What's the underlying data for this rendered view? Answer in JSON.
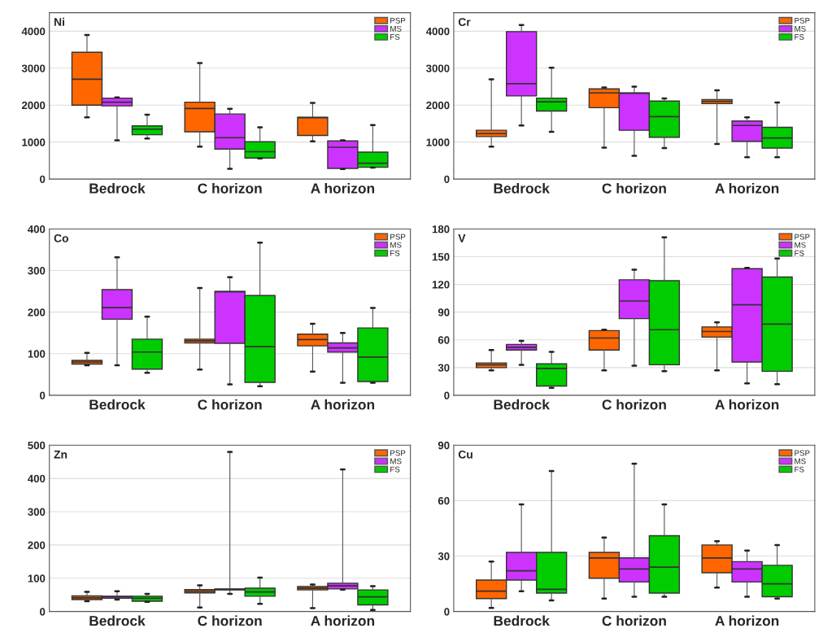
{
  "chart_data": [
    {
      "type": "box",
      "title": "Ni",
      "categories": [
        "Bedrock",
        "C horizon",
        "A horizon"
      ],
      "ylim": [
        0,
        4500
      ],
      "yticks": [
        0,
        1000,
        2000,
        3000,
        4000
      ],
      "grid": "y",
      "legend": "top right",
      "series": [
        {
          "name": "PSP",
          "color": "#ff6600",
          "boxes": [
            {
              "low": 1670,
              "q1": 2000,
              "median": 2700,
              "q3": 3430,
              "high": 3900
            },
            {
              "low": 880,
              "q1": 1280,
              "median": 1910,
              "q3": 2080,
              "high": 3140
            },
            {
              "low": 1020,
              "q1": 1180,
              "median": 1660,
              "q3": 1670,
              "high": 2060
            }
          ]
        },
        {
          "name": "MS",
          "color": "#cc33ff",
          "boxes": [
            {
              "low": 1050,
              "q1": 1980,
              "median": 2080,
              "q3": 2190,
              "high": 2210
            },
            {
              "low": 280,
              "q1": 810,
              "median": 1120,
              "q3": 1760,
              "high": 1900
            },
            {
              "low": 270,
              "q1": 290,
              "median": 860,
              "q3": 1030,
              "high": 1050
            }
          ]
        },
        {
          "name": "FS",
          "color": "#00cc00",
          "boxes": [
            {
              "low": 1100,
              "q1": 1200,
              "median": 1350,
              "q3": 1440,
              "high": 1740
            },
            {
              "low": 560,
              "q1": 570,
              "median": 740,
              "q3": 1010,
              "high": 1400
            },
            {
              "low": 310,
              "q1": 320,
              "median": 430,
              "q3": 730,
              "high": 1460
            }
          ]
        }
      ]
    },
    {
      "type": "box",
      "title": "Cr",
      "categories": [
        "Bedrock",
        "C horizon",
        "A horizon"
      ],
      "ylim": [
        0,
        4500
      ],
      "yticks": [
        0,
        1000,
        2000,
        3000,
        4000
      ],
      "grid": "y",
      "legend": "top right",
      "series": [
        {
          "name": "PSP",
          "color": "#ff6600",
          "boxes": [
            {
              "low": 880,
              "q1": 1150,
              "median": 1230,
              "q3": 1320,
              "high": 2700
            },
            {
              "low": 850,
              "q1": 1930,
              "median": 2330,
              "q3": 2440,
              "high": 2480
            },
            {
              "low": 950,
              "q1": 2040,
              "median": 2100,
              "q3": 2150,
              "high": 2400
            }
          ]
        },
        {
          "name": "MS",
          "color": "#cc33ff",
          "boxes": [
            {
              "low": 1450,
              "q1": 2250,
              "median": 2580,
              "q3": 3990,
              "high": 4170
            },
            {
              "low": 630,
              "q1": 1320,
              "median": 2320,
              "q3": 2330,
              "high": 2500
            },
            {
              "low": 590,
              "q1": 1020,
              "median": 1450,
              "q3": 1570,
              "high": 1670
            }
          ]
        },
        {
          "name": "FS",
          "color": "#00cc00",
          "boxes": [
            {
              "low": 1280,
              "q1": 1840,
              "median": 2090,
              "q3": 2190,
              "high": 3010
            },
            {
              "low": 840,
              "q1": 1130,
              "median": 1690,
              "q3": 2110,
              "high": 2180
            },
            {
              "low": 590,
              "q1": 840,
              "median": 1110,
              "q3": 1400,
              "high": 2070
            }
          ]
        }
      ]
    },
    {
      "type": "box",
      "title": "Co",
      "categories": [
        "Bedrock",
        "C horizon",
        "A horizon"
      ],
      "ylim": [
        0,
        400
      ],
      "yticks": [
        0,
        100,
        200,
        300,
        400
      ],
      "grid": "y",
      "legend": "top right",
      "series": [
        {
          "name": "PSP",
          "color": "#ff6600",
          "boxes": [
            {
              "low": 72,
              "q1": 75,
              "median": 80,
              "q3": 84,
              "high": 102
            },
            {
              "low": 62,
              "q1": 126,
              "median": 131,
              "q3": 135,
              "high": 258
            },
            {
              "low": 57,
              "q1": 119,
              "median": 134,
              "q3": 147,
              "high": 172
            }
          ]
        },
        {
          "name": "MS",
          "color": "#cc33ff",
          "boxes": [
            {
              "low": 72,
              "q1": 183,
              "median": 211,
              "q3": 254,
              "high": 332
            },
            {
              "low": 26,
              "q1": 125,
              "median": 249,
              "q3": 250,
              "high": 284
            },
            {
              "low": 30,
              "q1": 104,
              "median": 114,
              "q3": 126,
              "high": 150
            }
          ]
        },
        {
          "name": "FS",
          "color": "#00cc00",
          "boxes": [
            {
              "low": 54,
              "q1": 63,
              "median": 104,
              "q3": 135,
              "high": 189
            },
            {
              "low": 22,
              "q1": 31,
              "median": 117,
              "q3": 240,
              "high": 367
            },
            {
              "low": 30,
              "q1": 33,
              "median": 92,
              "q3": 162,
              "high": 210
            }
          ]
        }
      ]
    },
    {
      "type": "box",
      "title": "V",
      "categories": [
        "Bedrock",
        "C horizon",
        "A horizon"
      ],
      "ylim": [
        0,
        180
      ],
      "yticks": [
        0,
        30,
        60,
        90,
        120,
        150,
        180
      ],
      "grid": "y",
      "legend": "top right",
      "series": [
        {
          "name": "PSP",
          "color": "#ff6600",
          "boxes": [
            {
              "low": 27,
              "q1": 30,
              "median": 33,
              "q3": 35,
              "high": 49
            },
            {
              "low": 27,
              "q1": 49,
              "median": 62,
              "q3": 70,
              "high": 71
            },
            {
              "low": 27,
              "q1": 63,
              "median": 69,
              "q3": 74,
              "high": 79
            }
          ]
        },
        {
          "name": "MS",
          "color": "#cc33ff",
          "boxes": [
            {
              "low": 33,
              "q1": 49,
              "median": 52,
              "q3": 55,
              "high": 59
            },
            {
              "low": 32,
              "q1": 83,
              "median": 102,
              "q3": 125,
              "high": 136
            },
            {
              "low": 13,
              "q1": 36,
              "median": 98,
              "q3": 137,
              "high": 138
            }
          ]
        },
        {
          "name": "FS",
          "color": "#00cc00",
          "boxes": [
            {
              "low": 8,
              "q1": 10,
              "median": 29,
              "q3": 34,
              "high": 47
            },
            {
              "low": 26,
              "q1": 33,
              "median": 71,
              "q3": 124,
              "high": 171
            },
            {
              "low": 12,
              "q1": 26,
              "median": 77,
              "q3": 128,
              "high": 148
            }
          ]
        }
      ]
    },
    {
      "type": "box",
      "title": "Zn",
      "categories": [
        "Bedrock",
        "C horizon",
        "A horizon"
      ],
      "ylim": [
        0,
        500
      ],
      "yticks": [
        0,
        100,
        200,
        300,
        400,
        500
      ],
      "grid": "y",
      "legend": "top right",
      "series": [
        {
          "name": "PSP",
          "color": "#ff6600",
          "boxes": [
            {
              "low": 31,
              "q1": 36,
              "median": 41,
              "q3": 47,
              "high": 59
            },
            {
              "low": 12,
              "q1": 56,
              "median": 61,
              "q3": 66,
              "high": 79
            },
            {
              "low": 10,
              "q1": 65,
              "median": 70,
              "q3": 75,
              "high": 81
            }
          ]
        },
        {
          "name": "MS",
          "color": "#cc33ff",
          "boxes": [
            {
              "low": 36,
              "q1": 40,
              "median": 44,
              "q3": 46,
              "high": 61
            },
            {
              "low": 53,
              "q1": 65,
              "median": 66,
              "q3": 68,
              "high": 480
            },
            {
              "low": 66,
              "q1": 68,
              "median": 77,
              "q3": 85,
              "high": 427
            }
          ]
        },
        {
          "name": "FS",
          "color": "#00cc00",
          "boxes": [
            {
              "low": 29,
              "q1": 31,
              "median": 40,
              "q3": 46,
              "high": 53
            },
            {
              "low": 23,
              "q1": 46,
              "median": 59,
              "q3": 70,
              "high": 102
            },
            {
              "low": 5,
              "q1": 20,
              "median": 44,
              "q3": 65,
              "high": 76
            }
          ]
        }
      ]
    },
    {
      "type": "box",
      "title": "Cu",
      "categories": [
        "Bedrock",
        "C horizon",
        "A horizon"
      ],
      "ylim": [
        0,
        90
      ],
      "yticks": [
        0,
        30,
        60,
        90
      ],
      "grid": "y",
      "legend": "top right",
      "series": [
        {
          "name": "PSP",
          "color": "#ff6600",
          "boxes": [
            {
              "low": 2,
              "q1": 7,
              "median": 11,
              "q3": 17,
              "high": 27
            },
            {
              "low": 7,
              "q1": 18,
              "median": 29,
              "q3": 32,
              "high": 40
            },
            {
              "low": 13,
              "q1": 21,
              "median": 29,
              "q3": 36,
              "high": 38
            }
          ]
        },
        {
          "name": "MS",
          "color": "#cc33ff",
          "boxes": [
            {
              "low": 11,
              "q1": 17,
              "median": 22,
              "q3": 32,
              "high": 58
            },
            {
              "low": 8,
              "q1": 16,
              "median": 23,
              "q3": 29,
              "high": 80
            },
            {
              "low": 8,
              "q1": 16,
              "median": 23,
              "q3": 27,
              "high": 33
            }
          ]
        },
        {
          "name": "FS",
          "color": "#00cc00",
          "boxes": [
            {
              "low": 6,
              "q1": 10,
              "median": 12,
              "q3": 32,
              "high": 76
            },
            {
              "low": 8,
              "q1": 10,
              "median": 24,
              "q3": 41,
              "high": 58
            },
            {
              "low": 7,
              "q1": 8,
              "median": 15,
              "q3": 25,
              "high": 36
            }
          ]
        }
      ]
    }
  ]
}
